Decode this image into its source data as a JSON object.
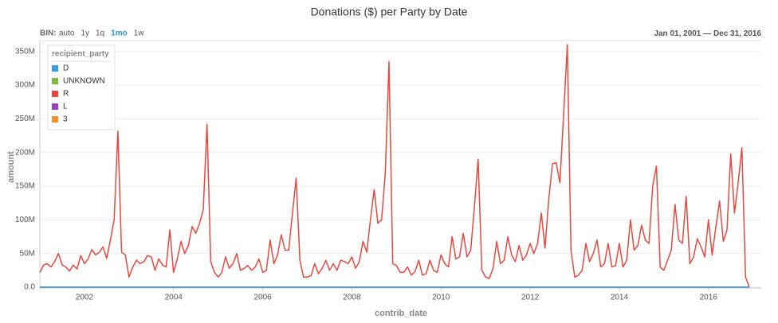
{
  "chart_data": {
    "type": "line",
    "title": "Donations ($) per Party by Date",
    "bin_label": "BIN:",
    "bin_options": [
      "auto",
      "1y",
      "1q",
      "1mo",
      "1w"
    ],
    "active_bin": 3,
    "date_range": {
      "start": "Jan 01, 2001",
      "separator": "—",
      "end": "Dec 31, 2016"
    },
    "legend_title": "recipient_party",
    "legend": "top-left",
    "grid": true,
    "x_label": "contrib_date",
    "y_label": "amount",
    "xlim": [
      "2001-01",
      "2016-12"
    ],
    "xticks": [
      {
        "value": "2002-01",
        "label": "2002"
      },
      {
        "value": "2004-01",
        "label": "2004"
      },
      {
        "value": "2006-01",
        "label": "2006"
      },
      {
        "value": "2008-01",
        "label": "2008"
      },
      {
        "value": "2010-01",
        "label": "2010"
      },
      {
        "value": "2012-01",
        "label": "2012"
      },
      {
        "value": "2014-01",
        "label": "2014"
      },
      {
        "value": "2016-01",
        "label": "2016"
      }
    ],
    "ylim": [
      0,
      365000000
    ],
    "yticks": [
      {
        "value": 0,
        "label": "0.0"
      },
      {
        "value": 50000000,
        "label": "50M"
      },
      {
        "value": 100000000,
        "label": "100M"
      },
      {
        "value": 150000000,
        "label": "150M"
      },
      {
        "value": 200000000,
        "label": "200M"
      },
      {
        "value": 250000000,
        "label": "250M"
      },
      {
        "value": 300000000,
        "label": "300M"
      },
      {
        "value": 350000000,
        "label": "350M"
      }
    ],
    "x": [
      "2001-01",
      "2001-02",
      "2001-03",
      "2001-04",
      "2001-05",
      "2001-06",
      "2001-07",
      "2001-08",
      "2001-09",
      "2001-10",
      "2001-11",
      "2001-12",
      "2002-01",
      "2002-02",
      "2002-03",
      "2002-04",
      "2002-05",
      "2002-06",
      "2002-07",
      "2002-08",
      "2002-09",
      "2002-10",
      "2002-11",
      "2002-12",
      "2003-01",
      "2003-02",
      "2003-03",
      "2003-04",
      "2003-05",
      "2003-06",
      "2003-07",
      "2003-08",
      "2003-09",
      "2003-10",
      "2003-11",
      "2003-12",
      "2004-01",
      "2004-02",
      "2004-03",
      "2004-04",
      "2004-05",
      "2004-06",
      "2004-07",
      "2004-08",
      "2004-09",
      "2004-10",
      "2004-11",
      "2004-12",
      "2005-01",
      "2005-02",
      "2005-03",
      "2005-04",
      "2005-05",
      "2005-06",
      "2005-07",
      "2005-08",
      "2005-09",
      "2005-10",
      "2005-11",
      "2005-12",
      "2006-01",
      "2006-02",
      "2006-03",
      "2006-04",
      "2006-05",
      "2006-06",
      "2006-07",
      "2006-08",
      "2006-09",
      "2006-10",
      "2006-11",
      "2006-12",
      "2007-01",
      "2007-02",
      "2007-03",
      "2007-04",
      "2007-05",
      "2007-06",
      "2007-07",
      "2007-08",
      "2007-09",
      "2007-10",
      "2007-11",
      "2007-12",
      "2008-01",
      "2008-02",
      "2008-03",
      "2008-04",
      "2008-05",
      "2008-06",
      "2008-07",
      "2008-08",
      "2008-09",
      "2008-10",
      "2008-11",
      "2008-12",
      "2009-01",
      "2009-02",
      "2009-03",
      "2009-04",
      "2009-05",
      "2009-06",
      "2009-07",
      "2009-08",
      "2009-09",
      "2009-10",
      "2009-11",
      "2009-12",
      "2010-01",
      "2010-02",
      "2010-03",
      "2010-04",
      "2010-05",
      "2010-06",
      "2010-07",
      "2010-08",
      "2010-09",
      "2010-10",
      "2010-11",
      "2010-12",
      "2011-01",
      "2011-02",
      "2011-03",
      "2011-04",
      "2011-05",
      "2011-06",
      "2011-07",
      "2011-08",
      "2011-09",
      "2011-10",
      "2011-11",
      "2011-12",
      "2012-01",
      "2012-02",
      "2012-03",
      "2012-04",
      "2012-05",
      "2012-06",
      "2012-07",
      "2012-08",
      "2012-09",
      "2012-10",
      "2012-11",
      "2012-12",
      "2013-01",
      "2013-02",
      "2013-03",
      "2013-04",
      "2013-05",
      "2013-06",
      "2013-07",
      "2013-08",
      "2013-09",
      "2013-10",
      "2013-11",
      "2013-12",
      "2014-01",
      "2014-02",
      "2014-03",
      "2014-04",
      "2014-05",
      "2014-06",
      "2014-07",
      "2014-08",
      "2014-09",
      "2014-10",
      "2014-11",
      "2014-12",
      "2015-01",
      "2015-02",
      "2015-03",
      "2015-04",
      "2015-05",
      "2015-06",
      "2015-07",
      "2015-08",
      "2015-09",
      "2015-10",
      "2015-11",
      "2015-12",
      "2016-01",
      "2016-02",
      "2016-03",
      "2016-04",
      "2016-05",
      "2016-06",
      "2016-07",
      "2016-08",
      "2016-09",
      "2016-10",
      "2016-11",
      "2016-12"
    ],
    "series": [
      {
        "name": "D",
        "color": "#3b9ddd",
        "values": [
          0,
          0,
          0,
          0,
          0,
          0,
          0,
          0,
          0,
          0,
          0,
          0,
          0,
          0,
          0,
          0,
          0,
          0,
          0,
          0,
          0,
          0,
          0,
          0,
          0,
          0,
          0,
          0,
          0,
          0,
          0,
          0,
          0,
          0,
          0,
          0,
          0,
          0,
          0,
          0,
          0,
          0,
          0,
          0,
          0,
          0,
          0,
          0,
          0,
          0,
          0,
          0,
          0,
          0,
          0,
          0,
          0,
          0,
          0,
          0,
          0,
          0,
          0,
          0,
          0,
          0,
          0,
          0,
          0,
          0,
          0,
          0,
          0,
          0,
          0,
          0,
          0,
          0,
          0,
          0,
          0,
          0,
          0,
          0,
          0,
          0,
          0,
          0,
          0,
          0,
          0,
          0,
          0,
          0,
          0,
          0,
          0,
          0,
          0,
          0,
          0,
          0,
          0,
          0,
          0,
          0,
          0,
          0,
          0,
          0,
          0,
          0,
          0,
          0,
          0,
          0,
          0,
          0,
          0,
          0,
          0,
          0,
          0,
          0,
          0,
          0,
          0,
          0,
          0,
          0,
          0,
          0,
          0,
          0,
          0,
          0,
          0,
          0,
          0,
          0,
          0,
          0,
          0,
          0,
          0,
          0,
          0,
          0,
          0,
          0,
          0,
          0,
          0,
          0,
          0,
          0,
          0,
          0,
          0,
          0,
          0,
          0,
          0,
          0,
          0,
          0,
          0,
          0,
          0,
          0,
          0,
          0,
          0,
          0,
          0,
          0,
          0,
          0,
          0,
          0,
          0,
          0,
          0,
          0,
          0,
          0,
          0,
          0,
          0,
          0,
          0,
          0
        ]
      },
      {
        "name": "UNKNOWN",
        "color": "#7db646",
        "values": [
          0,
          0,
          0,
          0,
          0,
          0,
          0,
          0,
          0,
          0,
          0,
          0,
          0,
          0,
          0,
          0,
          0,
          0,
          0,
          0,
          0,
          0,
          0,
          0,
          0,
          0,
          0,
          0,
          0,
          0,
          0,
          0,
          0,
          0,
          0,
          0,
          0,
          0,
          0,
          0,
          0,
          0,
          0,
          0,
          0,
          0,
          0,
          0,
          0,
          0,
          0,
          0,
          0,
          0,
          0,
          0,
          0,
          0,
          0,
          0,
          0,
          0,
          0,
          0,
          0,
          0,
          0,
          0,
          0,
          0,
          0,
          0,
          0,
          0,
          0,
          0,
          0,
          0,
          0,
          0,
          0,
          0,
          0,
          0,
          0,
          0,
          0,
          0,
          0,
          0,
          0,
          0,
          0,
          0,
          0,
          0,
          0,
          0,
          0,
          0,
          0,
          0,
          0,
          0,
          0,
          0,
          0,
          0,
          0,
          0,
          0,
          0,
          0,
          0,
          0,
          0,
          0,
          0,
          0,
          0,
          0,
          0,
          0,
          0,
          0,
          0,
          0,
          0,
          0,
          0,
          0,
          0,
          0,
          0,
          0,
          0,
          0,
          0,
          0,
          0,
          0,
          0,
          0,
          0,
          0,
          0,
          0,
          0,
          0,
          0,
          0,
          0,
          0,
          0,
          0,
          0,
          0,
          0,
          0,
          0,
          0,
          0,
          0,
          0,
          0,
          0,
          0,
          0,
          0,
          0,
          0,
          0,
          0,
          0,
          0,
          0,
          0,
          0,
          0,
          0,
          0,
          0,
          0,
          0,
          0,
          0,
          0,
          0,
          0,
          0,
          0,
          0
        ]
      },
      {
        "name": "R",
        "color": "#e5483f",
        "values": [
          22000000,
          33000000,
          35000000,
          30000000,
          38000000,
          50000000,
          33000000,
          30000000,
          24000000,
          33000000,
          27000000,
          47000000,
          35000000,
          42000000,
          56000000,
          48000000,
          52000000,
          60000000,
          43000000,
          70000000,
          100000000,
          232000000,
          52000000,
          48000000,
          15000000,
          30000000,
          40000000,
          35000000,
          38000000,
          47000000,
          45000000,
          25000000,
          42000000,
          33000000,
          30000000,
          85000000,
          22000000,
          42000000,
          68000000,
          50000000,
          62000000,
          90000000,
          80000000,
          95000000,
          115000000,
          242000000,
          38000000,
          22000000,
          15000000,
          22000000,
          45000000,
          28000000,
          35000000,
          50000000,
          25000000,
          28000000,
          32000000,
          25000000,
          30000000,
          42000000,
          22000000,
          25000000,
          70000000,
          35000000,
          48000000,
          78000000,
          55000000,
          55000000,
          110000000,
          162000000,
          40000000,
          15000000,
          15000000,
          17000000,
          35000000,
          20000000,
          28000000,
          40000000,
          25000000,
          35000000,
          25000000,
          40000000,
          38000000,
          35000000,
          45000000,
          28000000,
          38000000,
          68000000,
          52000000,
          100000000,
          145000000,
          95000000,
          100000000,
          170000000,
          335000000,
          35000000,
          32000000,
          22000000,
          22000000,
          30000000,
          18000000,
          23000000,
          40000000,
          18000000,
          20000000,
          40000000,
          25000000,
          22000000,
          48000000,
          35000000,
          30000000,
          75000000,
          42000000,
          45000000,
          80000000,
          45000000,
          55000000,
          120000000,
          190000000,
          25000000,
          15000000,
          13000000,
          28000000,
          68000000,
          35000000,
          40000000,
          75000000,
          48000000,
          38000000,
          62000000,
          40000000,
          48000000,
          65000000,
          50000000,
          65000000,
          110000000,
          58000000,
          130000000,
          183000000,
          185000000,
          155000000,
          255000000,
          360000000,
          55000000,
          15000000,
          18000000,
          25000000,
          65000000,
          38000000,
          50000000,
          70000000,
          30000000,
          35000000,
          65000000,
          30000000,
          32000000,
          65000000,
          30000000,
          40000000,
          100000000,
          55000000,
          62000000,
          92000000,
          70000000,
          65000000,
          150000000,
          180000000,
          30000000,
          25000000,
          40000000,
          55000000,
          123000000,
          70000000,
          65000000,
          135000000,
          35000000,
          45000000,
          72000000,
          60000000,
          45000000,
          100000000,
          48000000,
          90000000,
          128000000,
          68000000,
          85000000,
          198000000,
          110000000,
          155000000,
          207000000,
          15000000,
          0
        ]
      },
      {
        "name": "L",
        "color": "#9b40bd",
        "values": [
          0,
          0,
          0,
          0,
          0,
          0,
          0,
          0,
          0,
          0,
          0,
          0,
          0,
          0,
          0,
          0,
          0,
          0,
          0,
          0,
          0,
          0,
          0,
          0,
          0,
          0,
          0,
          0,
          0,
          0,
          0,
          0,
          0,
          0,
          0,
          0,
          0,
          0,
          0,
          0,
          0,
          0,
          0,
          0,
          0,
          0,
          0,
          0,
          0,
          0,
          0,
          0,
          0,
          0,
          0,
          0,
          0,
          0,
          0,
          0,
          0,
          0,
          0,
          0,
          0,
          0,
          0,
          0,
          0,
          0,
          0,
          0,
          0,
          0,
          0,
          0,
          0,
          0,
          0,
          0,
          0,
          0,
          0,
          0,
          0,
          0,
          0,
          0,
          0,
          0,
          0,
          0,
          0,
          0,
          0,
          0,
          0,
          0,
          0,
          0,
          0,
          0,
          0,
          0,
          0,
          0,
          0,
          0,
          0,
          0,
          0,
          0,
          0,
          0,
          0,
          0,
          0,
          0,
          0,
          0,
          0,
          0,
          0,
          0,
          0,
          0,
          0,
          0,
          0,
          0,
          0,
          0,
          0,
          0,
          0,
          0,
          0,
          0,
          0,
          0,
          0,
          0,
          0,
          0,
          0,
          0,
          0,
          0,
          0,
          0,
          0,
          0,
          0,
          0,
          0,
          0,
          0,
          0,
          0,
          0,
          0,
          0,
          0,
          0,
          0,
          0,
          0,
          0,
          0,
          0,
          0,
          0,
          0,
          0,
          0,
          0,
          0,
          0,
          0,
          0,
          0,
          0,
          0,
          0,
          0,
          0,
          0,
          0,
          0,
          0,
          0,
          0
        ]
      },
      {
        "name": "3",
        "color": "#f0922b",
        "values": [
          0,
          0,
          0,
          0,
          0,
          0,
          0,
          0,
          0,
          0,
          0,
          0,
          0,
          0,
          0,
          0,
          0,
          0,
          0,
          0,
          0,
          0,
          0,
          0,
          0,
          0,
          0,
          0,
          0,
          0,
          0,
          0,
          0,
          0,
          0,
          0,
          0,
          0,
          0,
          0,
          0,
          0,
          0,
          0,
          0,
          0,
          0,
          0,
          0,
          0,
          0,
          0,
          0,
          0,
          0,
          0,
          0,
          0,
          0,
          0,
          0,
          0,
          0,
          0,
          0,
          0,
          0,
          0,
          0,
          0,
          0,
          0,
          0,
          0,
          0,
          0,
          0,
          0,
          0,
          0,
          0,
          0,
          0,
          0,
          0,
          0,
          0,
          0,
          0,
          0,
          0,
          0,
          0,
          0,
          0,
          0,
          0,
          0,
          0,
          0,
          0,
          0,
          0,
          0,
          0,
          0,
          0,
          0,
          0,
          0,
          0,
          0,
          0,
          0,
          0,
          0,
          0,
          0,
          0,
          0,
          0,
          0,
          0,
          0,
          0,
          0,
          0,
          0,
          0,
          0,
          0,
          0,
          0,
          0,
          0,
          0,
          0,
          0,
          0,
          0,
          0,
          0,
          0,
          0,
          0,
          0,
          0,
          0,
          0,
          0,
          0,
          0,
          0,
          0,
          0,
          0,
          0,
          0,
          0,
          0,
          0,
          0,
          0,
          0,
          0,
          0,
          0,
          0,
          0,
          0,
          0,
          0,
          0,
          0,
          0,
          0,
          0,
          0,
          0,
          0,
          0,
          0,
          0,
          0,
          0,
          0,
          0,
          0,
          0,
          0,
          0,
          0
        ]
      }
    ]
  }
}
